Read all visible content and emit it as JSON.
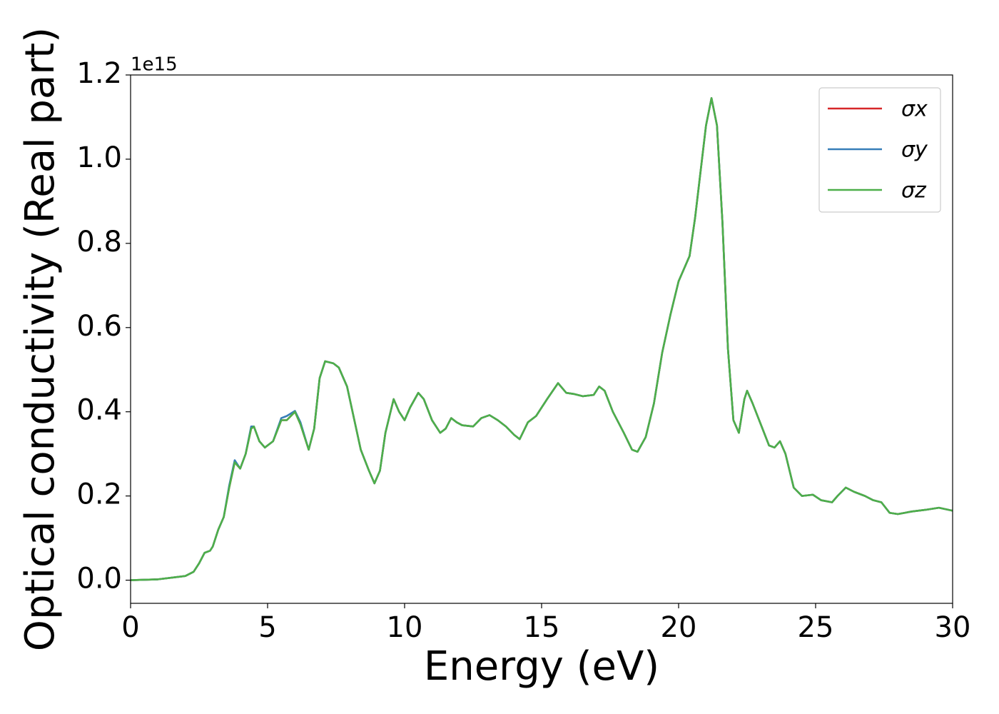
{
  "chart_data": {
    "type": "line",
    "xlabel": "Energy (eV)",
    "ylabel": "Optical conductivity (Real part)",
    "y_offset_label": "1e15",
    "xlim": [
      0,
      30
    ],
    "ylim": [
      -0.055,
      1.2
    ],
    "xticks": [
      0,
      5,
      10,
      15,
      20,
      25,
      30
    ],
    "yticks": [
      {
        "value": 0,
        "label": "0.0"
      },
      0.2,
      0.4,
      0.6,
      0.8,
      {
        "value": 1,
        "label": "1.0"
      },
      1.2
    ],
    "legend": "upper right",
    "x": [
      0,
      1,
      2,
      2.3,
      2.5,
      2.7,
      2.9,
      3.0,
      3.2,
      3.4,
      3.6,
      3.8,
      4.0,
      4.2,
      4.4,
      4.5,
      4.7,
      4.9,
      5.2,
      5.5,
      5.7,
      6.0,
      6.2,
      6.5,
      6.7,
      6.9,
      7.1,
      7.4,
      7.6,
      7.9,
      8.2,
      8.4,
      8.7,
      8.9,
      9.1,
      9.3,
      9.6,
      9.8,
      10.0,
      10.2,
      10.5,
      10.7,
      11.0,
      11.3,
      11.5,
      11.7,
      11.9,
      12.1,
      12.5,
      12.8,
      13.1,
      13.4,
      13.7,
      14.0,
      14.2,
      14.5,
      14.8,
      15.2,
      15.6,
      15.9,
      16.2,
      16.5,
      16.9,
      17.1,
      17.3,
      17.6,
      18.0,
      18.3,
      18.5,
      18.8,
      19.1,
      19.4,
      19.7,
      20.0,
      20.2,
      20.4,
      20.6,
      20.8,
      21.0,
      21.2,
      21.4,
      21.6,
      21.8,
      22.0,
      22.2,
      22.4,
      22.5,
      22.7,
      23.0,
      23.3,
      23.5,
      23.7,
      23.9,
      24.2,
      24.5,
      24.9,
      25.2,
      25.6,
      25.8,
      26.1,
      26.4,
      26.8,
      27.1,
      27.4,
      27.7,
      28.0,
      28.5,
      29.0,
      29.5,
      30.0
    ],
    "series": [
      {
        "name": "σx",
        "color": "#d62728",
        "values": [
          0,
          0.002,
          0.01,
          0.02,
          0.04,
          0.065,
          0.07,
          0.08,
          0.12,
          0.15,
          0.22,
          0.28,
          0.265,
          0.3,
          0.36,
          0.365,
          0.33,
          0.315,
          0.33,
          0.38,
          0.38,
          0.4,
          0.37,
          0.31,
          0.36,
          0.48,
          0.52,
          0.515,
          0.505,
          0.46,
          0.37,
          0.31,
          0.26,
          0.23,
          0.26,
          0.35,
          0.43,
          0.4,
          0.38,
          0.41,
          0.445,
          0.43,
          0.38,
          0.35,
          0.36,
          0.385,
          0.375,
          0.368,
          0.365,
          0.385,
          0.392,
          0.38,
          0.365,
          0.345,
          0.335,
          0.375,
          0.39,
          0.43,
          0.468,
          0.445,
          0.442,
          0.437,
          0.44,
          0.46,
          0.45,
          0.4,
          0.35,
          0.31,
          0.305,
          0.34,
          0.42,
          0.54,
          0.63,
          0.71,
          0.74,
          0.77,
          0.86,
          0.97,
          1.08,
          1.145,
          1.08,
          0.85,
          0.55,
          0.38,
          0.35,
          0.43,
          0.45,
          0.42,
          0.37,
          0.32,
          0.315,
          0.33,
          0.3,
          0.22,
          0.2,
          0.203,
          0.19,
          0.185,
          0.2,
          0.22,
          0.21,
          0.2,
          0.19,
          0.185,
          0.16,
          0.157,
          0.163,
          0.167,
          0.172,
          0.165
        ]
      },
      {
        "name": "σy",
        "color": "#377eb8",
        "values": [
          0,
          0.002,
          0.01,
          0.02,
          0.04,
          0.065,
          0.07,
          0.08,
          0.12,
          0.15,
          0.225,
          0.285,
          0.265,
          0.3,
          0.365,
          0.365,
          0.33,
          0.315,
          0.33,
          0.385,
          0.39,
          0.402,
          0.375,
          0.31,
          0.36,
          0.48,
          0.52,
          0.515,
          0.505,
          0.46,
          0.37,
          0.31,
          0.26,
          0.23,
          0.26,
          0.35,
          0.43,
          0.4,
          0.38,
          0.41,
          0.445,
          0.43,
          0.38,
          0.35,
          0.36,
          0.385,
          0.375,
          0.368,
          0.365,
          0.385,
          0.392,
          0.38,
          0.365,
          0.345,
          0.335,
          0.375,
          0.39,
          0.43,
          0.468,
          0.445,
          0.442,
          0.437,
          0.44,
          0.46,
          0.45,
          0.4,
          0.35,
          0.31,
          0.305,
          0.34,
          0.42,
          0.54,
          0.63,
          0.71,
          0.74,
          0.77,
          0.86,
          0.97,
          1.08,
          1.145,
          1.08,
          0.85,
          0.55,
          0.38,
          0.35,
          0.43,
          0.45,
          0.42,
          0.37,
          0.32,
          0.315,
          0.33,
          0.3,
          0.22,
          0.2,
          0.203,
          0.19,
          0.185,
          0.2,
          0.22,
          0.21,
          0.2,
          0.19,
          0.185,
          0.16,
          0.157,
          0.163,
          0.167,
          0.172,
          0.165
        ]
      },
      {
        "name": "σz",
        "color": "#4daf4a",
        "values": [
          0,
          0.002,
          0.01,
          0.02,
          0.04,
          0.065,
          0.07,
          0.08,
          0.12,
          0.15,
          0.22,
          0.28,
          0.265,
          0.3,
          0.36,
          0.365,
          0.33,
          0.315,
          0.33,
          0.38,
          0.38,
          0.4,
          0.37,
          0.31,
          0.36,
          0.48,
          0.52,
          0.515,
          0.505,
          0.46,
          0.37,
          0.31,
          0.26,
          0.23,
          0.26,
          0.35,
          0.43,
          0.4,
          0.38,
          0.41,
          0.445,
          0.43,
          0.38,
          0.35,
          0.36,
          0.385,
          0.375,
          0.368,
          0.365,
          0.385,
          0.392,
          0.38,
          0.365,
          0.345,
          0.335,
          0.375,
          0.39,
          0.43,
          0.468,
          0.445,
          0.442,
          0.437,
          0.44,
          0.46,
          0.45,
          0.4,
          0.35,
          0.31,
          0.305,
          0.34,
          0.42,
          0.54,
          0.63,
          0.71,
          0.74,
          0.77,
          0.86,
          0.97,
          1.08,
          1.145,
          1.08,
          0.85,
          0.55,
          0.38,
          0.35,
          0.43,
          0.45,
          0.42,
          0.37,
          0.32,
          0.315,
          0.33,
          0.3,
          0.22,
          0.2,
          0.203,
          0.19,
          0.185,
          0.2,
          0.22,
          0.21,
          0.2,
          0.19,
          0.185,
          0.16,
          0.157,
          0.163,
          0.167,
          0.172,
          0.165
        ]
      }
    ]
  }
}
